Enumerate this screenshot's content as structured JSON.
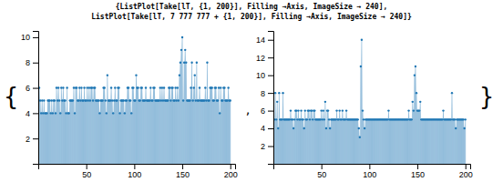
{
  "chart_data": [
    {
      "type": "stem",
      "title": "{ListPlot[Take[lT, {1, 200}], Filling →Axis, ImageSize → 240],",
      "annotations": [
        "{",
        ","
      ],
      "xlim": [
        0,
        205
      ],
      "xticks": [
        50,
        100,
        150,
        200
      ],
      "ylim": [
        0,
        10.5
      ],
      "yticks": [
        2,
        4,
        6,
        8,
        10
      ],
      "x": [
        1,
        2,
        3,
        4,
        5,
        6,
        7,
        8,
        9,
        10,
        11,
        12,
        13,
        14,
        15,
        16,
        17,
        18,
        19,
        20,
        21,
        22,
        23,
        24,
        25,
        26,
        27,
        28,
        29,
        30,
        31,
        32,
        33,
        34,
        35,
        36,
        37,
        38,
        39,
        40,
        41,
        42,
        43,
        44,
        45,
        46,
        47,
        48,
        49,
        50,
        51,
        52,
        53,
        54,
        55,
        56,
        57,
        58,
        59,
        60,
        61,
        62,
        63,
        64,
        65,
        66,
        67,
        68,
        69,
        70,
        71,
        72,
        73,
        74,
        75,
        76,
        77,
        78,
        79,
        80,
        81,
        82,
        83,
        84,
        85,
        86,
        87,
        88,
        89,
        90,
        91,
        92,
        93,
        94,
        95,
        96,
        97,
        98,
        99,
        100,
        101,
        102,
        103,
        104,
        105,
        106,
        107,
        108,
        109,
        110,
        111,
        112,
        113,
        114,
        115,
        116,
        117,
        118,
        119,
        120,
        121,
        122,
        123,
        124,
        125,
        126,
        127,
        128,
        129,
        130,
        131,
        132,
        133,
        134,
        135,
        136,
        137,
        138,
        139,
        140,
        141,
        142,
        143,
        144,
        145,
        146,
        147,
        148,
        149,
        150,
        151,
        152,
        153,
        154,
        155,
        156,
        157,
        158,
        159,
        160,
        161,
        162,
        163,
        164,
        165,
        166,
        167,
        168,
        169,
        170,
        171,
        172,
        173,
        174,
        175,
        176,
        177,
        178,
        179,
        180,
        181,
        182,
        183,
        184,
        185,
        186,
        187,
        188,
        189,
        190,
        191,
        192,
        193,
        194,
        195,
        196,
        197,
        198,
        199,
        200
      ],
      "values": [
        6,
        5,
        4,
        5,
        4,
        5,
        4,
        4,
        4,
        5,
        5,
        5,
        4,
        5,
        4,
        5,
        5,
        4,
        6,
        5,
        6,
        5,
        4,
        6,
        5,
        6,
        5,
        5,
        4,
        6,
        4,
        4,
        5,
        5,
        5,
        5,
        6,
        4,
        6,
        6,
        5,
        5,
        6,
        5,
        6,
        5,
        5,
        6,
        5,
        5,
        6,
        5,
        6,
        5,
        6,
        6,
        5,
        6,
        6,
        5,
        5,
        5,
        5,
        4,
        5,
        5,
        5,
        6,
        6,
        5,
        4,
        7,
        5,
        5,
        5,
        6,
        5,
        4,
        5,
        6,
        5,
        5,
        6,
        6,
        4,
        5,
        5,
        5,
        5,
        4,
        5,
        5,
        6,
        6,
        5,
        5,
        4,
        6,
        6,
        5,
        5,
        7,
        6,
        6,
        5,
        5,
        6,
        6,
        5,
        5,
        5,
        6,
        5,
        5,
        5,
        5,
        6,
        5,
        5,
        6,
        6,
        5,
        5,
        5,
        5,
        5,
        6,
        5,
        6,
        5,
        6,
        5,
        5,
        5,
        5,
        6,
        6,
        5,
        6,
        6,
        5,
        5,
        6,
        5,
        6,
        5,
        7,
        8,
        9,
        10,
        5,
        8,
        9,
        8,
        5,
        5,
        5,
        5,
        6,
        8,
        5,
        6,
        7,
        5,
        8,
        5,
        5,
        6,
        5,
        5,
        5,
        5,
        5,
        6,
        5,
        8,
        5,
        5,
        6,
        6,
        6,
        5,
        5,
        6,
        6,
        5,
        5,
        6,
        4,
        6,
        5,
        5,
        6,
        6,
        5,
        5,
        5,
        6,
        5,
        5
      ]
    },
    {
      "type": "stem",
      "title": " ListPlot[Take[lT, 7 777 777 + {1, 200}], Filling →Axis, ImageSize → 240]}",
      "annotations": [
        "}"
      ],
      "xlim": [
        0,
        205
      ],
      "xticks": [
        50,
        100,
        150,
        200
      ],
      "ylim": [
        0,
        15
      ],
      "yticks": [
        2,
        4,
        6,
        8,
        10,
        12,
        14
      ],
      "x": [
        1,
        2,
        3,
        4,
        5,
        6,
        7,
        8,
        9,
        10,
        11,
        12,
        13,
        14,
        15,
        16,
        17,
        18,
        19,
        20,
        21,
        22,
        23,
        24,
        25,
        26,
        27,
        28,
        29,
        30,
        31,
        32,
        33,
        34,
        35,
        36,
        37,
        38,
        39,
        40,
        41,
        42,
        43,
        44,
        45,
        46,
        47,
        48,
        49,
        50,
        51,
        52,
        53,
        54,
        55,
        56,
        57,
        58,
        59,
        60,
        61,
        62,
        63,
        64,
        65,
        66,
        67,
        68,
        69,
        70,
        71,
        72,
        73,
        74,
        75,
        76,
        77,
        78,
        79,
        80,
        81,
        82,
        83,
        84,
        85,
        86,
        87,
        88,
        89,
        90,
        91,
        92,
        93,
        94,
        95,
        96,
        97,
        98,
        99,
        100,
        101,
        102,
        103,
        104,
        105,
        106,
        107,
        108,
        109,
        110,
        111,
        112,
        113,
        114,
        115,
        116,
        117,
        118,
        119,
        120,
        121,
        122,
        123,
        124,
        125,
        126,
        127,
        128,
        129,
        130,
        131,
        132,
        133,
        134,
        135,
        136,
        137,
        138,
        139,
        140,
        141,
        142,
        143,
        144,
        145,
        146,
        147,
        148,
        149,
        150,
        151,
        152,
        153,
        154,
        155,
        156,
        157,
        158,
        159,
        160,
        161,
        162,
        163,
        164,
        165,
        166,
        167,
        168,
        169,
        170,
        171,
        172,
        173,
        174,
        175,
        176,
        177,
        178,
        179,
        180,
        181,
        182,
        183,
        184,
        185,
        186,
        187,
        188,
        189,
        190,
        191,
        192,
        193,
        194,
        195,
        196,
        197,
        198,
        199,
        200
      ],
      "values": [
        5,
        8,
        5,
        7,
        4,
        8,
        5,
        5,
        5,
        8,
        5,
        5,
        5,
        5,
        5,
        5,
        5,
        6,
        5,
        5,
        4,
        5,
        6,
        6,
        5,
        6,
        5,
        5,
        6,
        5,
        5,
        4,
        6,
        5,
        5,
        6,
        6,
        5,
        6,
        6,
        5,
        6,
        6,
        5,
        5,
        5,
        5,
        5,
        5,
        6,
        5,
        6,
        5,
        7,
        4,
        6,
        6,
        5,
        4,
        5,
        5,
        5,
        5,
        5,
        5,
        6,
        5,
        5,
        6,
        5,
        5,
        6,
        5,
        5,
        5,
        6,
        5,
        5,
        5,
        5,
        5,
        5,
        5,
        5,
        5,
        5,
        5,
        5,
        4,
        3,
        11,
        14,
        6,
        5,
        4,
        5,
        5,
        5,
        5,
        5,
        5,
        5,
        5,
        5,
        5,
        5,
        5,
        5,
        5,
        5,
        5,
        5,
        5,
        5,
        5,
        5,
        5,
        5,
        5,
        6,
        5,
        5,
        5,
        5,
        5,
        5,
        5,
        5,
        5,
        5,
        5,
        5,
        5,
        5,
        5,
        5,
        5,
        5,
        5,
        5,
        6,
        5,
        5,
        5,
        7,
        6,
        10,
        11,
        8,
        6,
        6,
        6,
        7,
        5,
        5,
        5,
        5,
        5,
        5,
        5,
        5,
        5,
        5,
        5,
        5,
        5,
        5,
        5,
        5,
        5,
        5,
        5,
        5,
        5,
        5,
        5,
        6,
        5,
        5,
        5,
        5,
        5,
        5,
        5,
        5,
        8,
        5,
        5,
        5,
        4,
        5,
        5,
        5,
        5,
        5,
        5,
        5,
        5,
        4,
        5
      ]
    }
  ]
}
